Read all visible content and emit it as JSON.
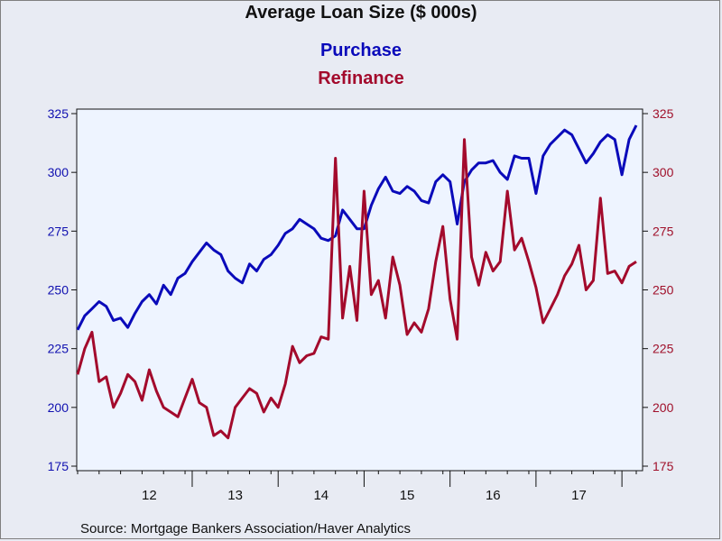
{
  "header": {
    "title": "Average Loan Size ($ 000s)"
  },
  "footer": {
    "source": "Source:  Mortgage Bankers Association/Haver Analytics"
  },
  "colors": {
    "background": "#e8ebf3",
    "plot_area": "#eef4ff",
    "purchase": "#0a0aba",
    "refinance": "#a30a2c"
  },
  "chart_data": {
    "type": "line",
    "title": "Average Loan Size ($ 000s)",
    "x_axis": {
      "type": "date",
      "range": [
        "2011-09",
        "2018-03"
      ],
      "year_labels": [
        "12",
        "13",
        "14",
        "15",
        "16",
        "17"
      ]
    },
    "y_left": {
      "min": 175,
      "max": 325,
      "ticks": [
        175,
        200,
        225,
        250,
        275,
        300,
        325
      ]
    },
    "y_right": {
      "min": 175,
      "max": 325,
      "ticks": [
        175,
        200,
        225,
        250,
        275,
        300,
        325
      ]
    },
    "grid": false,
    "legend_placement": "top-center",
    "series": [
      {
        "name": "Purchase",
        "color": "#0a0aba",
        "axis": "left",
        "points": [
          [
            "2011-09",
            233
          ],
          [
            "2011-10",
            239
          ],
          [
            "2011-11",
            242
          ],
          [
            "2011-12",
            245
          ],
          [
            "2012-01",
            243
          ],
          [
            "2012-02",
            237
          ],
          [
            "2012-03",
            238
          ],
          [
            "2012-04",
            234
          ],
          [
            "2012-05",
            240
          ],
          [
            "2012-06",
            245
          ],
          [
            "2012-07",
            248
          ],
          [
            "2012-08",
            244
          ],
          [
            "2012-09",
            252
          ],
          [
            "2012-10",
            248
          ],
          [
            "2012-11",
            255
          ],
          [
            "2012-12",
            257
          ],
          [
            "2013-01",
            262
          ],
          [
            "2013-02",
            266
          ],
          [
            "2013-03",
            270
          ],
          [
            "2013-04",
            267
          ],
          [
            "2013-05",
            265
          ],
          [
            "2013-06",
            258
          ],
          [
            "2013-07",
            255
          ],
          [
            "2013-08",
            253
          ],
          [
            "2013-09",
            261
          ],
          [
            "2013-10",
            258
          ],
          [
            "2013-11",
            263
          ],
          [
            "2013-12",
            265
          ],
          [
            "2014-01",
            269
          ],
          [
            "2014-02",
            274
          ],
          [
            "2014-03",
            276
          ],
          [
            "2014-04",
            280
          ],
          [
            "2014-05",
            278
          ],
          [
            "2014-06",
            276
          ],
          [
            "2014-07",
            272
          ],
          [
            "2014-08",
            271
          ],
          [
            "2014-09",
            273
          ],
          [
            "2014-10",
            284
          ],
          [
            "2014-11",
            280
          ],
          [
            "2014-12",
            276
          ],
          [
            "2015-01",
            276
          ],
          [
            "2015-02",
            286
          ],
          [
            "2015-03",
            293
          ],
          [
            "2015-04",
            298
          ],
          [
            "2015-05",
            292
          ],
          [
            "2015-06",
            291
          ],
          [
            "2015-07",
            294
          ],
          [
            "2015-08",
            292
          ],
          [
            "2015-09",
            288
          ],
          [
            "2015-10",
            287
          ],
          [
            "2015-11",
            296
          ],
          [
            "2015-12",
            299
          ],
          [
            "2016-01",
            296
          ],
          [
            "2016-02",
            278
          ],
          [
            "2016-03",
            296
          ],
          [
            "2016-04",
            301
          ],
          [
            "2016-05",
            304
          ],
          [
            "2016-06",
            304
          ],
          [
            "2016-07",
            305
          ],
          [
            "2016-08",
            300
          ],
          [
            "2016-09",
            297
          ],
          [
            "2016-10",
            307
          ],
          [
            "2016-11",
            306
          ],
          [
            "2016-12",
            306
          ],
          [
            "2017-01",
            291
          ],
          [
            "2017-02",
            307
          ],
          [
            "2017-03",
            312
          ],
          [
            "2017-04",
            315
          ],
          [
            "2017-05",
            318
          ],
          [
            "2017-06",
            316
          ],
          [
            "2017-07",
            310
          ],
          [
            "2017-08",
            304
          ],
          [
            "2017-09",
            308
          ],
          [
            "2017-10",
            313
          ],
          [
            "2017-11",
            316
          ],
          [
            "2017-12",
            314
          ],
          [
            "2018-01",
            299
          ],
          [
            "2018-02",
            314
          ],
          [
            "2018-03",
            320
          ]
        ]
      },
      {
        "name": "Refinance",
        "color": "#a30a2c",
        "axis": "right",
        "points": [
          [
            "2011-09",
            214
          ],
          [
            "2011-10",
            225
          ],
          [
            "2011-11",
            232
          ],
          [
            "2011-12",
            211
          ],
          [
            "2012-01",
            213
          ],
          [
            "2012-02",
            200
          ],
          [
            "2012-03",
            206
          ],
          [
            "2012-04",
            214
          ],
          [
            "2012-05",
            211
          ],
          [
            "2012-06",
            203
          ],
          [
            "2012-07",
            216
          ],
          [
            "2012-08",
            207
          ],
          [
            "2012-09",
            200
          ],
          [
            "2012-10",
            198
          ],
          [
            "2012-11",
            196
          ],
          [
            "2012-12",
            204
          ],
          [
            "2013-01",
            212
          ],
          [
            "2013-02",
            202
          ],
          [
            "2013-03",
            200
          ],
          [
            "2013-04",
            188
          ],
          [
            "2013-05",
            190
          ],
          [
            "2013-06",
            187
          ],
          [
            "2013-07",
            200
          ],
          [
            "2013-08",
            204
          ],
          [
            "2013-09",
            208
          ],
          [
            "2013-10",
            206
          ],
          [
            "2013-11",
            198
          ],
          [
            "2013-12",
            204
          ],
          [
            "2014-01",
            200
          ],
          [
            "2014-02",
            210
          ],
          [
            "2014-03",
            226
          ],
          [
            "2014-04",
            219
          ],
          [
            "2014-05",
            222
          ],
          [
            "2014-06",
            223
          ],
          [
            "2014-07",
            230
          ],
          [
            "2014-08",
            229
          ],
          [
            "2014-09",
            306
          ],
          [
            "2014-10",
            238
          ],
          [
            "2014-11",
            260
          ],
          [
            "2014-12",
            237
          ],
          [
            "2015-01",
            292
          ],
          [
            "2015-02",
            248
          ],
          [
            "2015-03",
            254
          ],
          [
            "2015-04",
            238
          ],
          [
            "2015-05",
            264
          ],
          [
            "2015-06",
            252
          ],
          [
            "2015-07",
            231
          ],
          [
            "2015-08",
            236
          ],
          [
            "2015-09",
            232
          ],
          [
            "2015-10",
            242
          ],
          [
            "2015-11",
            262
          ],
          [
            "2015-12",
            277
          ],
          [
            "2016-01",
            246
          ],
          [
            "2016-02",
            229
          ],
          [
            "2016-03",
            314
          ],
          [
            "2016-04",
            264
          ],
          [
            "2016-05",
            252
          ],
          [
            "2016-06",
            266
          ],
          [
            "2016-07",
            258
          ],
          [
            "2016-08",
            262
          ],
          [
            "2016-09",
            292
          ],
          [
            "2016-10",
            267
          ],
          [
            "2016-11",
            272
          ],
          [
            "2016-12",
            262
          ],
          [
            "2017-01",
            251
          ],
          [
            "2017-02",
            236
          ],
          [
            "2017-03",
            242
          ],
          [
            "2017-04",
            248
          ],
          [
            "2017-05",
            256
          ],
          [
            "2017-06",
            261
          ],
          [
            "2017-07",
            269
          ],
          [
            "2017-08",
            250
          ],
          [
            "2017-09",
            254
          ],
          [
            "2017-10",
            289
          ],
          [
            "2017-11",
            257
          ],
          [
            "2017-12",
            258
          ],
          [
            "2018-01",
            253
          ],
          [
            "2018-02",
            260
          ],
          [
            "2018-03",
            262
          ]
        ]
      }
    ]
  }
}
